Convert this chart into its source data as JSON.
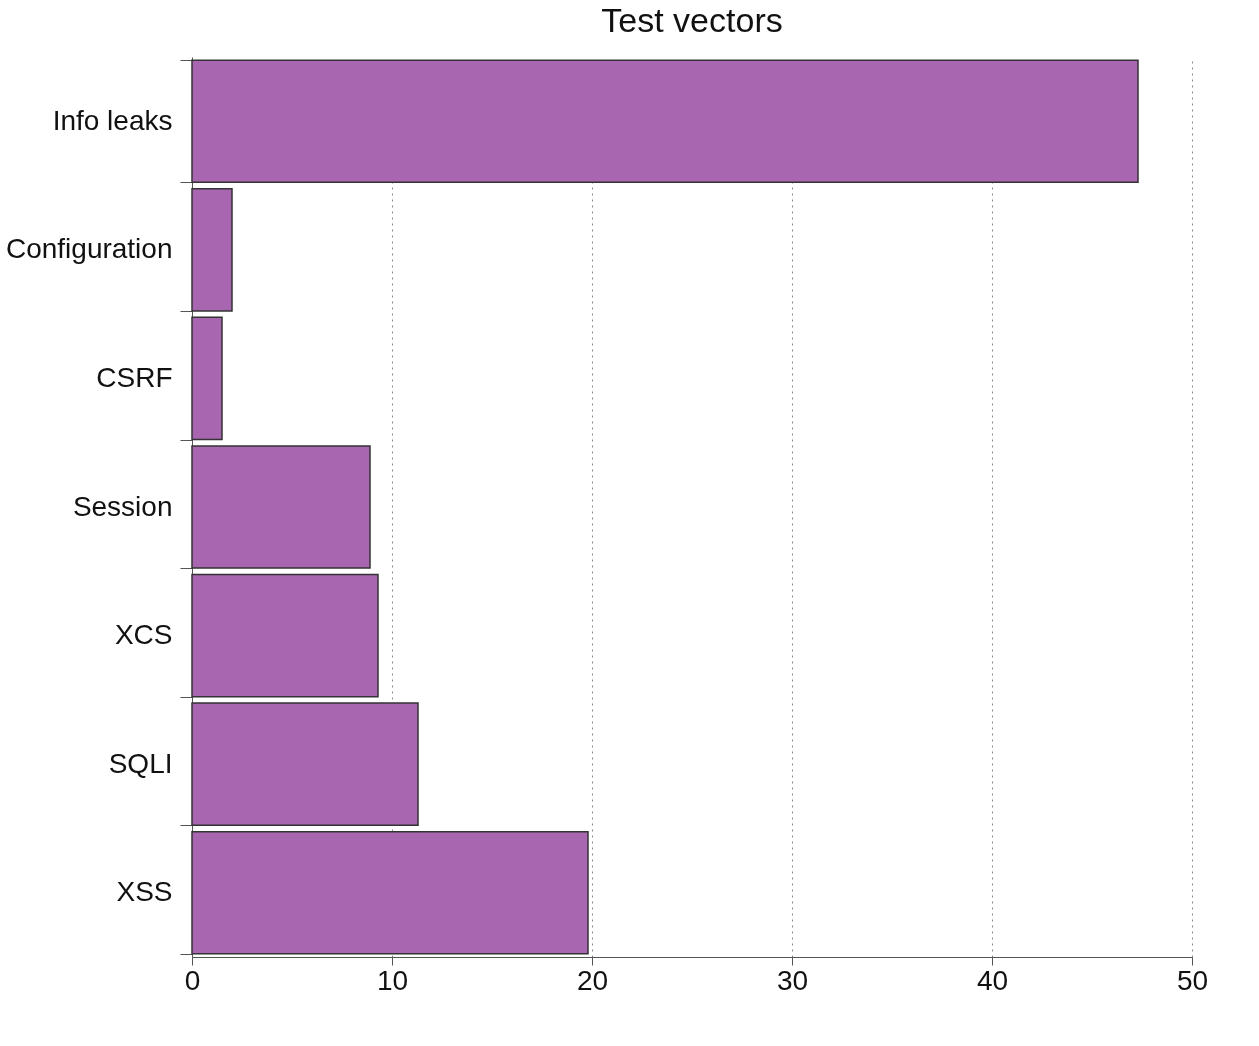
{
  "chart_data": {
    "type": "bar",
    "title": "Test vectors",
    "orientation": "horizontal",
    "categories": [
      "Info leaks",
      "Configuration",
      "CSRF",
      "Session",
      "XCS",
      "SQLI",
      "XSS"
    ],
    "values": [
      47.3,
      2,
      1.5,
      8.9,
      9.3,
      11.3,
      19.8
    ],
    "color": "#a866b0",
    "xlim": [
      0,
      50
    ],
    "xticks": [
      0,
      10,
      20,
      30,
      40,
      50
    ],
    "grid": "x"
  }
}
